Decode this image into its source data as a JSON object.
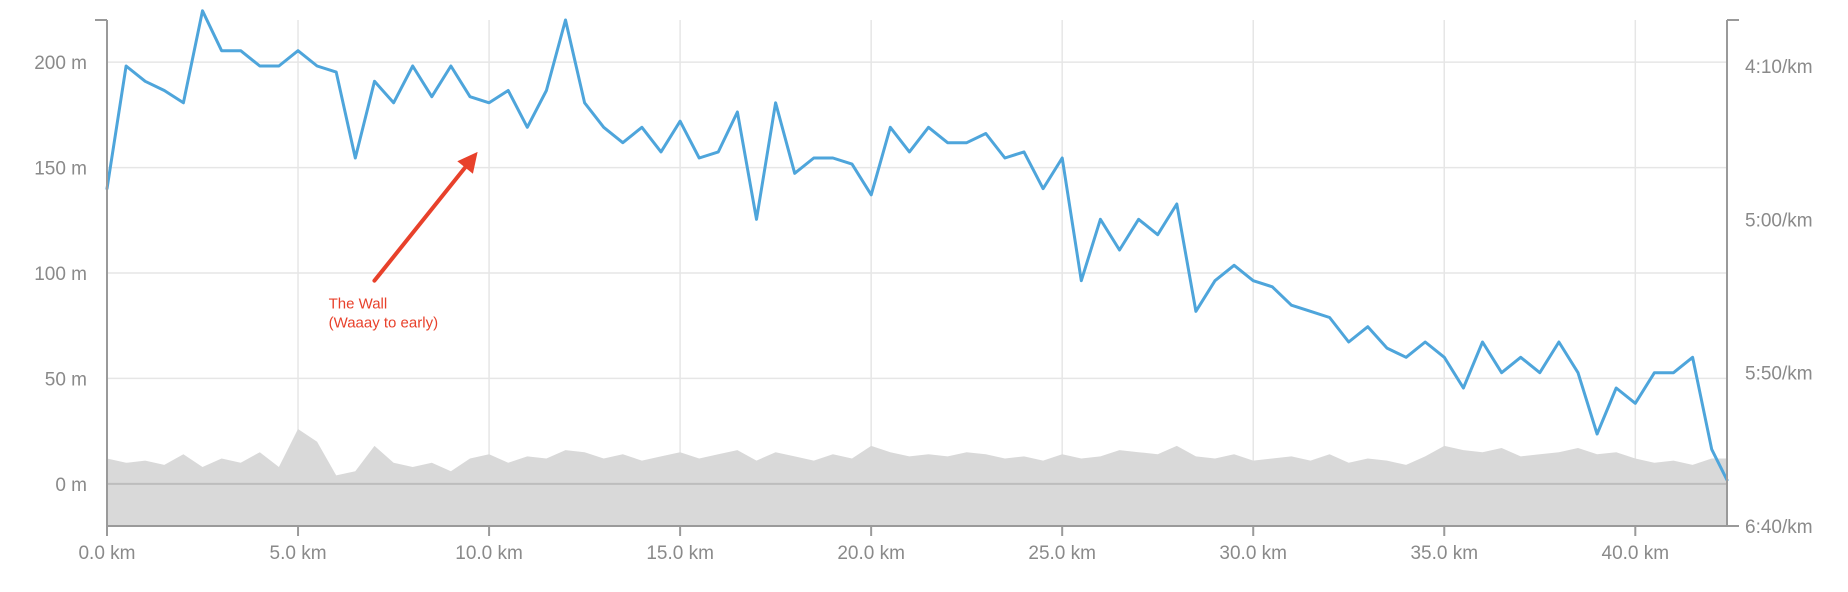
{
  "chart_data": {
    "type": "line",
    "title": "",
    "xlabel": "",
    "ylabel": "",
    "x_range": [
      0,
      42.4
    ],
    "elevation_range": [
      -20,
      220
    ],
    "pace_range_seconds_per_km": [
      400,
      235
    ],
    "x_ticks": [
      {
        "value": 0,
        "label": "0.0 km"
      },
      {
        "value": 5,
        "label": "5.0 km"
      },
      {
        "value": 10,
        "label": "10.0 km"
      },
      {
        "value": 15,
        "label": "15.0 km"
      },
      {
        "value": 20,
        "label": "20.0 km"
      },
      {
        "value": 25,
        "label": "25.0 km"
      },
      {
        "value": 30,
        "label": "30.0 km"
      },
      {
        "value": 35,
        "label": "35.0 km"
      },
      {
        "value": 40,
        "label": "40.0 km"
      }
    ],
    "y_left_ticks": [
      {
        "value": 200,
        "label": "200 m"
      },
      {
        "value": 150,
        "label": "150 m"
      },
      {
        "value": 100,
        "label": "100 m"
      },
      {
        "value": 50,
        "label": "50 m"
      },
      {
        "value": 0,
        "label": "0 m"
      }
    ],
    "y_right_ticks": [
      {
        "value": 250,
        "label": "4:10/km"
      },
      {
        "value": 300,
        "label": "5:00/km"
      },
      {
        "value": 350,
        "label": "5:50/km"
      },
      {
        "value": 400,
        "label": "6:40/km"
      }
    ],
    "grid": true,
    "series": [
      {
        "kind": "area",
        "axis": "left",
        "color": "#d9d9d9",
        "x": [
          0,
          0.5,
          1,
          1.5,
          2,
          2.5,
          3,
          3.5,
          4,
          4.5,
          5,
          5.5,
          6,
          6.5,
          7,
          7.5,
          8,
          8.5,
          9,
          9.5,
          10,
          10.5,
          11,
          11.5,
          12,
          12.5,
          13,
          13.5,
          14,
          14.5,
          15,
          15.5,
          16,
          16.5,
          17,
          17.5,
          18,
          18.5,
          19,
          19.5,
          20,
          20.5,
          21,
          21.5,
          22,
          22.5,
          23,
          23.5,
          24,
          24.5,
          25,
          25.5,
          26,
          26.5,
          27,
          27.5,
          28,
          28.5,
          29,
          29.5,
          30,
          30.5,
          31,
          31.5,
          32,
          32.5,
          33,
          33.5,
          34,
          34.5,
          35,
          35.5,
          36,
          36.5,
          37,
          37.5,
          38,
          38.5,
          39,
          39.5,
          40,
          40.5,
          41,
          41.5,
          42,
          42.4
        ],
        "values": [
          12,
          10,
          11,
          9,
          14,
          8,
          12,
          10,
          15,
          8,
          26,
          20,
          4,
          6,
          18,
          10,
          8,
          10,
          6,
          12,
          14,
          10,
          13,
          12,
          16,
          15,
          12,
          14,
          11,
          13,
          15,
          12,
          14,
          16,
          11,
          15,
          13,
          11,
          14,
          12,
          18,
          15,
          13,
          14,
          13,
          15,
          14,
          12,
          13,
          11,
          14,
          12,
          13,
          16,
          15,
          14,
          18,
          13,
          12,
          14,
          11,
          12,
          13,
          11,
          14,
          10,
          12,
          11,
          9,
          13,
          18,
          16,
          15,
          17,
          13,
          14,
          15,
          17,
          14,
          15,
          12,
          10,
          11,
          9,
          12,
          12
        ]
      },
      {
        "kind": "line",
        "axis": "right",
        "color": "#4ea5db",
        "x": [
          0,
          0.5,
          1,
          1.5,
          2,
          2.5,
          3,
          3.5,
          4,
          4.5,
          5,
          5.5,
          6,
          6.5,
          7,
          7.5,
          8,
          8.5,
          9,
          9.5,
          10,
          10.5,
          11,
          11.5,
          12,
          12.5,
          13,
          13.5,
          14,
          14.5,
          15,
          15.5,
          16,
          16.5,
          17,
          17.5,
          18,
          18.5,
          19,
          19.5,
          20,
          20.5,
          21,
          21.5,
          22,
          22.5,
          23,
          23.5,
          24,
          24.5,
          25,
          25.5,
          26,
          26.5,
          27,
          27.5,
          28,
          28.5,
          29,
          29.5,
          30,
          30.5,
          31,
          31.5,
          32,
          32.5,
          33,
          33.5,
          34,
          34.5,
          35,
          35.5,
          36,
          36.5,
          37,
          37.5,
          38,
          38.5,
          39,
          39.5,
          40,
          40.5,
          41,
          41.5,
          42,
          42.4
        ],
        "values": [
          290,
          250,
          255,
          258,
          262,
          232,
          245,
          245,
          250,
          250,
          245,
          250,
          252,
          280,
          255,
          262,
          250,
          260,
          250,
          260,
          262,
          258,
          270,
          258,
          235,
          262,
          270,
          275,
          270,
          278,
          268,
          280,
          278,
          265,
          300,
          262,
          285,
          280,
          280,
          282,
          292,
          270,
          278,
          270,
          275,
          275,
          272,
          280,
          278,
          290,
          280,
          320,
          300,
          310,
          300,
          305,
          295,
          330,
          320,
          315,
          320,
          322,
          328,
          330,
          332,
          340,
          335,
          342,
          345,
          340,
          345,
          355,
          340,
          350,
          345,
          350,
          340,
          350,
          370,
          355,
          360,
          350,
          350,
          345,
          375,
          385
        ]
      }
    ],
    "annotation": {
      "text_lines": [
        "The Wall",
        "(Waaay to early)"
      ],
      "color": "#e8412b",
      "arrow_from": {
        "x": 7.0,
        "pace": 320
      },
      "arrow_to": {
        "x": 9.7,
        "pace": 278
      },
      "text_at": {
        "x": 5.8,
        "pace": 329
      }
    }
  }
}
